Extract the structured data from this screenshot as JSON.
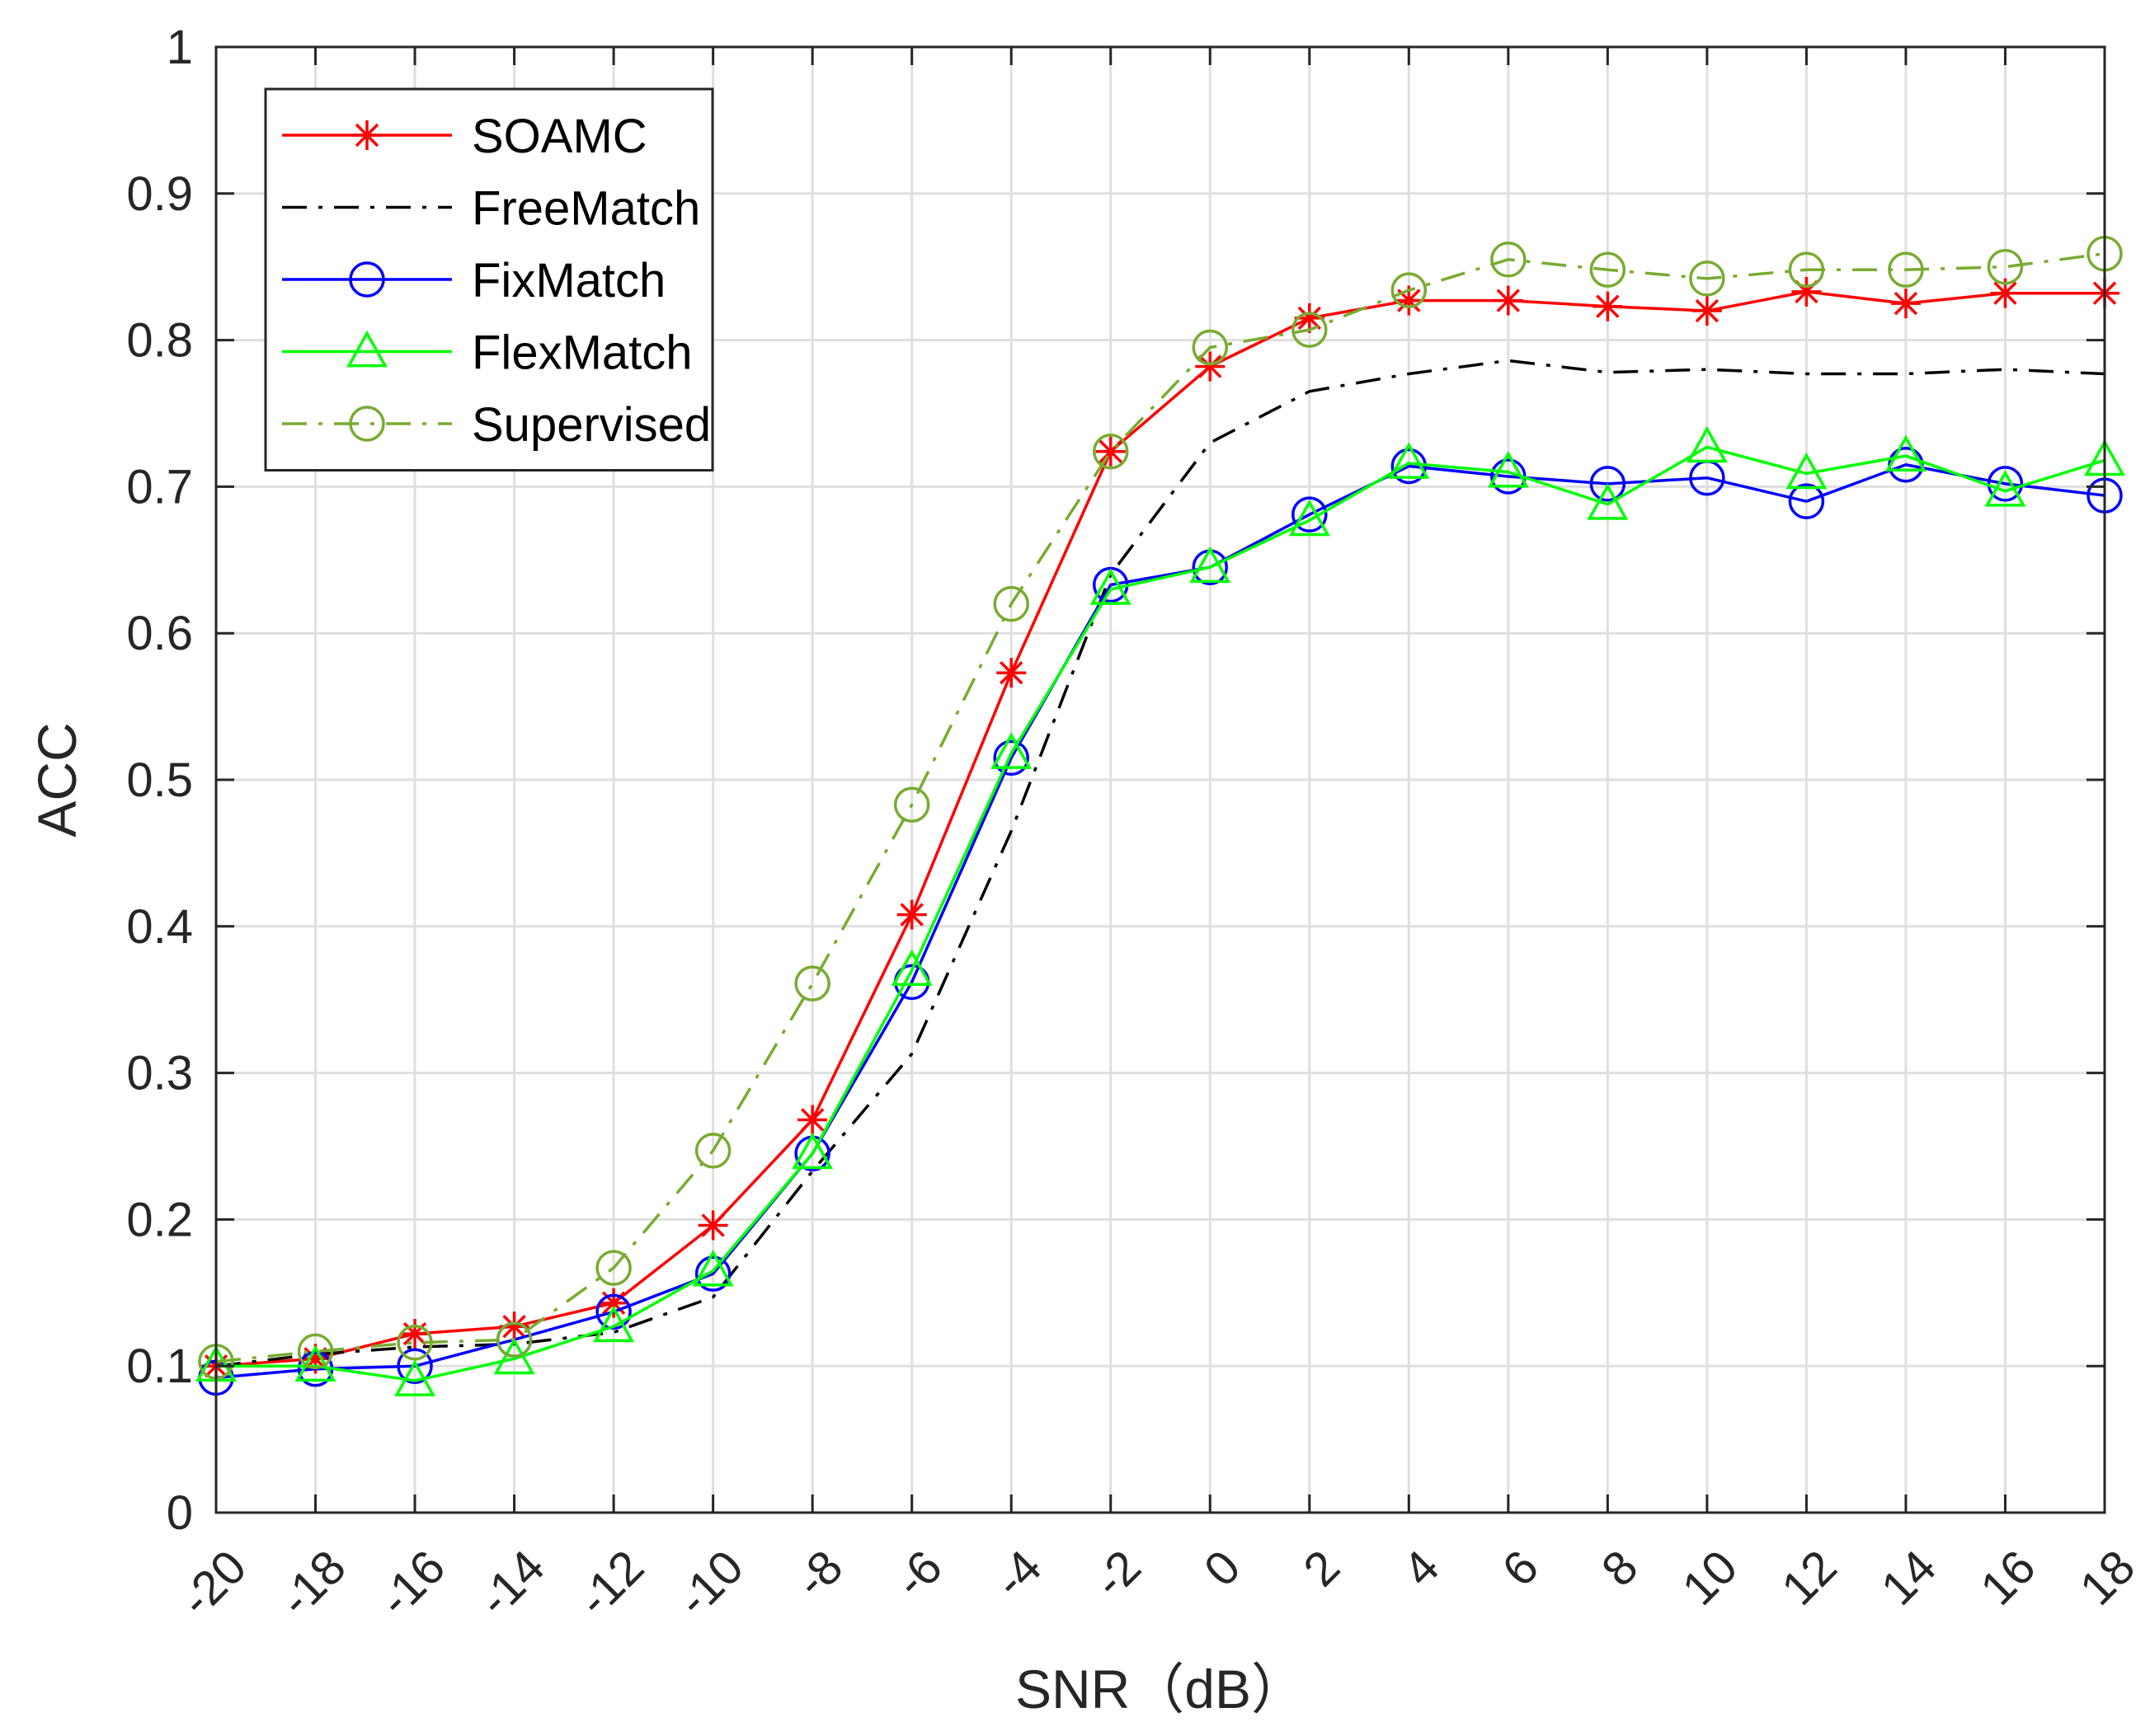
{
  "chart_data": {
    "type": "line",
    "title": "",
    "xlabel": "SNR（dB）",
    "ylabel": "ACC",
    "x": [
      -20,
      -18,
      -16,
      -14,
      -12,
      -10,
      -8,
      -6,
      -4,
      -2,
      0,
      2,
      4,
      6,
      8,
      10,
      12,
      14,
      16,
      18
    ],
    "x_tick_labels": [
      "-20",
      "-18",
      "-16",
      "-14",
      "-12",
      "-10",
      "-8",
      "-6",
      "-4",
      "-2",
      "0",
      "2",
      "4",
      "6",
      "8",
      "10",
      "12",
      "14",
      "16",
      "18"
    ],
    "y_tick_labels": [
      "0",
      "0.1",
      "0.2",
      "0.3",
      "0.4",
      "0.5",
      "0.6",
      "0.7",
      "0.8",
      "0.9",
      "1"
    ],
    "y_ticks": [
      0,
      0.1,
      0.2,
      0.3,
      0.4,
      0.5,
      0.6,
      0.7,
      0.8,
      0.9,
      1
    ],
    "xlim": [
      -20,
      18
    ],
    "ylim": [
      0,
      1
    ],
    "grid": true,
    "legend_position": "top-left",
    "series": [
      {
        "name": "SOAMC",
        "color": "#ff0000",
        "line_style": "solid",
        "marker": "asterisk",
        "values": [
          0.1,
          0.105,
          0.122,
          0.127,
          0.143,
          0.196,
          0.268,
          0.408,
          0.573,
          0.724,
          0.782,
          0.815,
          0.827,
          0.827,
          0.823,
          0.82,
          0.833,
          0.825,
          0.832,
          0.832
        ]
      },
      {
        "name": "FreeMatch",
        "color": "#000000",
        "line_style": "dash-dot",
        "marker": "none",
        "values": [
          0.1,
          0.108,
          0.113,
          0.115,
          0.123,
          0.147,
          0.233,
          0.313,
          0.465,
          0.64,
          0.73,
          0.765,
          0.777,
          0.786,
          0.778,
          0.78,
          0.777,
          0.777,
          0.78,
          0.777
        ]
      },
      {
        "name": "FixMatch",
        "color": "#0000ff",
        "line_style": "solid",
        "marker": "circle",
        "values": [
          0.092,
          0.098,
          0.1,
          0.118,
          0.137,
          0.163,
          0.245,
          0.362,
          0.515,
          0.633,
          0.645,
          0.681,
          0.714,
          0.707,
          0.702,
          0.706,
          0.69,
          0.715,
          0.702,
          0.694
        ]
      },
      {
        "name": "FlexMatch",
        "color": "#00ff00",
        "line_style": "solid",
        "marker": "triangle",
        "values": [
          0.1,
          0.1,
          0.09,
          0.105,
          0.127,
          0.165,
          0.245,
          0.37,
          0.518,
          0.63,
          0.645,
          0.677,
          0.716,
          0.71,
          0.688,
          0.727,
          0.709,
          0.721,
          0.697,
          0.718
        ]
      },
      {
        "name": "Supervised",
        "color": "#77ac30",
        "line_style": "dash-dot",
        "marker": "circle",
        "values": [
          0.103,
          0.11,
          0.116,
          0.118,
          0.167,
          0.247,
          0.361,
          0.483,
          0.62,
          0.724,
          0.795,
          0.807,
          0.834,
          0.855,
          0.848,
          0.842,
          0.848,
          0.848,
          0.85,
          0.859
        ]
      }
    ]
  }
}
